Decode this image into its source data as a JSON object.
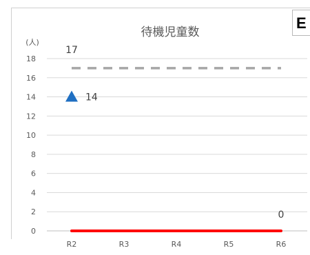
{
  "corner_label": "E",
  "chart_data": {
    "type": "line",
    "title": "待機児童数",
    "ylabel": "(人)",
    "xlabel": "",
    "categories": [
      "R2",
      "R3",
      "R4",
      "R5",
      "R6"
    ],
    "ylim": [
      0,
      18
    ],
    "yticks": [
      0,
      2,
      4,
      6,
      8,
      10,
      12,
      14,
      16,
      18
    ],
    "grid": true,
    "series": [
      {
        "name": "",
        "style": "dashed-line",
        "color": "#a6a6a6",
        "values": [
          17,
          17,
          17,
          17,
          17
        ],
        "data_label": "17",
        "data_label_index": 0
      },
      {
        "name": "",
        "style": "triangle-marker",
        "color": "#1f6fc2",
        "values": [
          14,
          null,
          null,
          null,
          null
        ],
        "data_label": "14",
        "data_label_index": 0
      },
      {
        "name": "",
        "style": "solid-line",
        "color": "#ff0000",
        "values": [
          0,
          0,
          0,
          0,
          0
        ],
        "data_label": "0",
        "data_label_index": 4
      }
    ]
  }
}
